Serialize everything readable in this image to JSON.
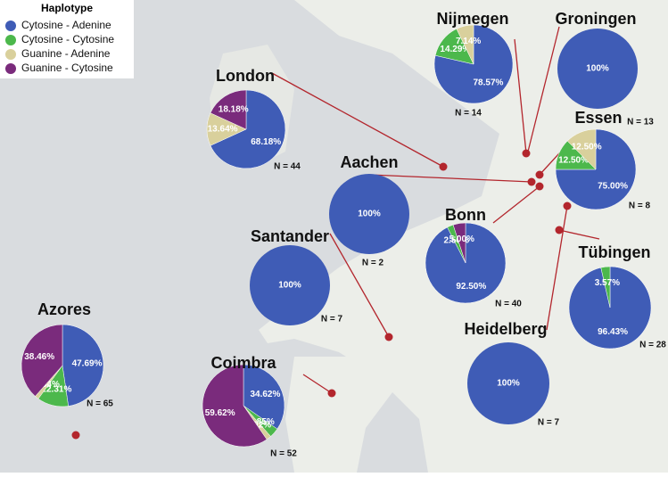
{
  "legend": {
    "title": "Haplotype",
    "entries": [
      {
        "name": "Cytosine  -  Adenine",
        "color": "#3f5cb6"
      },
      {
        "name": "Cytosine  -  Cytosine",
        "color": "#4cb84c"
      },
      {
        "name": "Guanine  -  Adenine",
        "color": "#d9d09c"
      },
      {
        "name": "Guanine  -  Cytosine",
        "color": "#7a2b7c"
      }
    ]
  },
  "sites": [
    {
      "name": "Nijmegen",
      "n": "N = 14",
      "values": [
        78.57,
        14.29,
        7.14,
        0
      ],
      "value_labels": [
        "78.57%",
        "14.29%",
        "7.14%",
        null
      ]
    },
    {
      "name": "Groningen",
      "n": "N = 13",
      "values": [
        100,
        0,
        0,
        0
      ],
      "value_labels": [
        "100%",
        null,
        null,
        null
      ]
    },
    {
      "name": "London",
      "n": "N = 44",
      "values": [
        68.18,
        0,
        13.64,
        18.18
      ],
      "value_labels": [
        "68.18%",
        null,
        "13.64%",
        "18.18%"
      ]
    },
    {
      "name": "Essen",
      "n": "N = 8",
      "values": [
        75,
        12.5,
        12.5,
        0
      ],
      "value_labels": [
        "75.00%",
        "12.50%",
        "12.50%",
        null
      ]
    },
    {
      "name": "Aachen",
      "n": "N = 2",
      "values": [
        100,
        0,
        0,
        0
      ],
      "value_labels": [
        "100%",
        null,
        null,
        null
      ]
    },
    {
      "name": "Bonn",
      "n": "N = 40",
      "values": [
        92.5,
        2.5,
        0,
        5
      ],
      "value_labels": [
        "92.50%",
        "2.50%",
        null,
        "5.00%"
      ]
    },
    {
      "name": "Santander",
      "n": "N = 7",
      "values": [
        100,
        0,
        0,
        0
      ],
      "value_labels": [
        "100%",
        null,
        null,
        null
      ]
    },
    {
      "name": "Tübingen",
      "n": "N = 28",
      "values": [
        96.43,
        3.57,
        0,
        0
      ],
      "value_labels": [
        "96.43%",
        "3.57%",
        null,
        null
      ]
    },
    {
      "name": "Azores",
      "n": "N = 65",
      "values": [
        47.69,
        12.31,
        1.54,
        38.46
      ],
      "value_labels": [
        "47.69%",
        "12.31%",
        "1.54%",
        "38.46%"
      ]
    },
    {
      "name": "Coimbra",
      "n": "N = 52",
      "values": [
        34.62,
        3.85,
        1.92,
        59.62
      ],
      "value_labels": [
        "34.62%",
        "3.85%",
        "1.92%",
        "59.62%"
      ]
    },
    {
      "name": "Heidelberg",
      "n": "N = 7",
      "values": [
        100,
        0,
        0,
        0
      ],
      "value_labels": [
        "100%",
        null,
        null,
        null
      ]
    }
  ]
}
